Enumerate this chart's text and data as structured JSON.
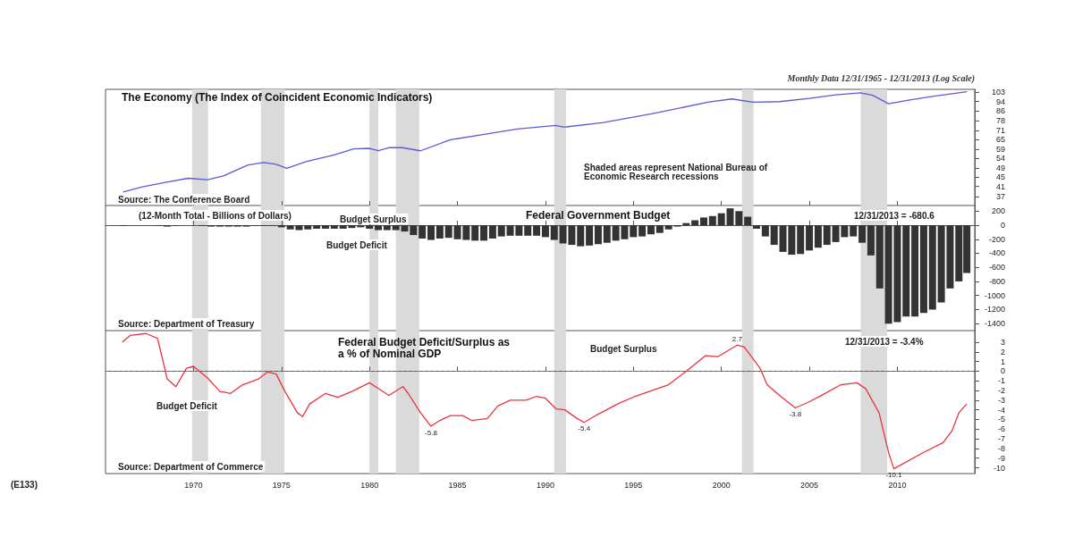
{
  "chart_data": [
    {
      "type": "line",
      "title": "The Economy (The Index of Coincident Economic Indicators)",
      "subtitle": "Monthly Data 12/31/1965 - 12/31/2013 (Log Scale)",
      "annotations": [
        "Shaded areas represent National Bureau of Economic Research recessions",
        "Source: The Conference Board"
      ],
      "log": true,
      "tick_labels": "y",
      "xlim": [
        1965,
        2014.4
      ],
      "xticks": [
        1970,
        1975,
        1980,
        1985,
        1990,
        1995,
        2000,
        2005,
        2010
      ],
      "ylim": [
        34,
        106
      ],
      "yticks": [
        37,
        41,
        45,
        49,
        54,
        59,
        65,
        71,
        78,
        86,
        94,
        103
      ],
      "bands": [
        {
          "axis": "x",
          "from": 1969.92,
          "to": 1970.83,
          "color": "#dadada"
        },
        {
          "axis": "x",
          "from": 1973.83,
          "to": 1975.17,
          "color": "#dadada"
        },
        {
          "axis": "x",
          "from": 1980.0,
          "to": 1980.5,
          "color": "#dadada"
        },
        {
          "axis": "x",
          "from": 1981.5,
          "to": 1982.83,
          "color": "#dadada"
        },
        {
          "axis": "x",
          "from": 1990.5,
          "to": 1991.17,
          "color": "#dadada"
        },
        {
          "axis": "x",
          "from": 2001.17,
          "to": 2001.83,
          "color": "#dadada"
        },
        {
          "axis": "x",
          "from": 2007.92,
          "to": 2009.42,
          "color": "#dadada"
        }
      ],
      "series": [
        {
          "color": "#5a5ad8",
          "x": [
            1966.0,
            1967.1,
            1968.4,
            1969.7,
            1970.8,
            1971.7,
            1973.1,
            1974.0,
            1974.7,
            1975.3,
            1976.4,
            1978.0,
            1979.1,
            1980.0,
            1980.5,
            1981.1,
            1981.85,
            1982.9,
            1984.6,
            1986.6,
            1988.4,
            1990.6,
            1991.0,
            1991.2,
            1993.3,
            1996.1,
            1999.3,
            2000.6,
            2001.8,
            2003.3,
            2005.0,
            2006.5,
            2007.9,
            2008.6,
            2009.5,
            2010.5,
            2012.0,
            2013.95
          ],
          "values": [
            38.8,
            40.8,
            42.6,
            44.4,
            43.8,
            45.4,
            50.6,
            51.8,
            50.9,
            48.9,
            52.3,
            55.8,
            59.2,
            59.5,
            58.1,
            59.9,
            59.9,
            58.1,
            64.7,
            68.4,
            71.9,
            74.4,
            73.3,
            73.4,
            76.6,
            83.6,
            93.7,
            96.5,
            93.5,
            94,
            97,
            100.5,
            102.5,
            100,
            92,
            95,
            99,
            103.5
          ]
        }
      ]
    },
    {
      "type": "bar",
      "title": "Federal Government Budget",
      "annotations": [
        "(12-Month Total - Billions of Dollars)",
        "Budget Surplus",
        "Budget Deficit",
        "12/31/2013 = -680.6",
        "Source: Department of Treasury"
      ],
      "tick_labels": "y",
      "xlim": [
        1965,
        2014.4
      ],
      "xticks": [
        1970,
        1975,
        1980,
        1985,
        1990,
        1995,
        2000,
        2005,
        2010
      ],
      "ylim": [
        -1500,
        280
      ],
      "yticks": [
        200,
        0,
        -200,
        -400,
        -600,
        -800,
        -1000,
        -1200,
        -1400
      ],
      "bands": [
        {
          "axis": "x",
          "from": 1969.92,
          "to": 1970.83,
          "color": "#dadada"
        },
        {
          "axis": "x",
          "from": 1973.83,
          "to": 1975.17,
          "color": "#dadada"
        },
        {
          "axis": "x",
          "from": 1980.0,
          "to": 1980.5,
          "color": "#dadada"
        },
        {
          "axis": "x",
          "from": 1981.5,
          "to": 1982.83,
          "color": "#dadada"
        },
        {
          "axis": "x",
          "from": 1990.5,
          "to": 1991.17,
          "color": "#dadada"
        },
        {
          "axis": "x",
          "from": 2001.17,
          "to": 2001.83,
          "color": "#dadada"
        },
        {
          "axis": "x",
          "from": 2007.92,
          "to": 2009.42,
          "color": "#dadada"
        }
      ],
      "series": [
        {
          "color": "#333333",
          "x": [
            1966,
            1966.5,
            1967,
            1967.5,
            1968,
            1968.5,
            1969,
            1969.5,
            1970,
            1970.5,
            1971,
            1971.5,
            1972,
            1972.5,
            1973,
            1973.5,
            1974,
            1974.5,
            1975,
            1975.5,
            1976,
            1976.5,
            1977,
            1977.5,
            1978,
            1978.5,
            1979,
            1979.5,
            1980,
            1980.5,
            1981,
            1981.5,
            1982,
            1982.5,
            1983,
            1983.5,
            1984,
            1984.5,
            1985,
            1985.5,
            1986,
            1986.5,
            1987,
            1987.5,
            1988,
            1988.5,
            1989,
            1989.5,
            1990,
            1990.5,
            1991,
            1991.5,
            1992,
            1992.5,
            1993,
            1993.5,
            1994,
            1994.5,
            1995,
            1995.5,
            1996,
            1996.5,
            1997,
            1997.5,
            1998,
            1998.5,
            1999,
            1999.5,
            2000,
            2000.5,
            2001,
            2001.5,
            2002,
            2002.5,
            2003,
            2003.5,
            2004,
            2004.5,
            2005,
            2005.5,
            2006,
            2006.5,
            2007,
            2007.5,
            2008,
            2008.5,
            2009,
            2009.5,
            2010,
            2010.5,
            2011,
            2011.5,
            2012,
            2012.5,
            2013,
            2013.5,
            2013.95
          ],
          "values": [
            -10,
            0,
            0,
            0,
            -10,
            -20,
            -10,
            0,
            0,
            -10,
            -20,
            -20,
            -20,
            -20,
            -20,
            -10,
            -10,
            -10,
            -30,
            -60,
            -70,
            -60,
            -50,
            -50,
            -50,
            -50,
            -40,
            -30,
            -50,
            -70,
            -70,
            -70,
            -90,
            -140,
            -190,
            -210,
            -190,
            -180,
            -200,
            -210,
            -220,
            -220,
            -190,
            -160,
            -150,
            -150,
            -150,
            -150,
            -170,
            -210,
            -260,
            -280,
            -300,
            -290,
            -270,
            -250,
            -220,
            -200,
            -170,
            -160,
            -130,
            -110,
            -60,
            -20,
            30,
            70,
            110,
            130,
            170,
            240,
            200,
            120,
            -50,
            -160,
            -280,
            -380,
            -420,
            -410,
            -360,
            -320,
            -280,
            -240,
            -170,
            -160,
            -250,
            -430,
            -900,
            -1400,
            -1380,
            -1300,
            -1300,
            -1250,
            -1200,
            -1100,
            -900,
            -800,
            -680.6
          ]
        }
      ]
    },
    {
      "type": "line",
      "title": "Federal Budget Deficit/Surplus as a % of Nominal GDP",
      "annotations": [
        "Budget Surplus",
        "Budget Deficit",
        "12/31/2013 = -3.4%",
        "Source: Department of Commerce",
        "(E133)",
        {
          "text": "-5.8",
          "x": 1983.5,
          "y": -5.7
        },
        {
          "text": "-5.4",
          "x": 1992.2,
          "y": -5.3
        },
        {
          "text": "2.7",
          "x": 2000.9,
          "y": 2.7
        },
        {
          "text": "-3.8",
          "x": 2004.2,
          "y": -3.8
        },
        {
          "text": "-10.1",
          "x": 2009.8,
          "y": -10.1
        }
      ],
      "xlim": [
        1965,
        2014.4
      ],
      "xticks": [
        1970,
        1975,
        1980,
        1985,
        1990,
        1995,
        2000,
        2005,
        2010
      ],
      "ylim": [
        -10.6,
        4.2
      ],
      "yticks": [
        3,
        2,
        1,
        0,
        -1,
        -2,
        -3,
        -4,
        -5,
        -6,
        -7,
        -8,
        -9,
        -10
      ],
      "ref_lines": [
        {
          "axis": "y",
          "value": 0,
          "line_style": "dashed",
          "color": "#777777"
        }
      ],
      "bands": [
        {
          "axis": "x",
          "from": 1969.92,
          "to": 1970.83,
          "color": "#dadada"
        },
        {
          "axis": "x",
          "from": 1973.83,
          "to": 1975.17,
          "color": "#dadada"
        },
        {
          "axis": "x",
          "from": 1980.0,
          "to": 1980.5,
          "color": "#dadada"
        },
        {
          "axis": "x",
          "from": 1981.5,
          "to": 1982.83,
          "color": "#dadada"
        },
        {
          "axis": "x",
          "from": 1990.5,
          "to": 1991.17,
          "color": "#dadada"
        },
        {
          "axis": "x",
          "from": 2001.17,
          "to": 2001.83,
          "color": "#dadada"
        },
        {
          "axis": "x",
          "from": 2007.92,
          "to": 2009.42,
          "color": "#dadada"
        }
      ],
      "series": [
        {
          "color": "#e8343c",
          "x": [
            1965.95,
            1966.4,
            1967.3,
            1967.95,
            1968.3,
            1968.5,
            1969.0,
            1969.6,
            1970.0,
            1970.8,
            1971.5,
            1972.1,
            1972.8,
            1973.7,
            1974.2,
            1974.7,
            1975.2,
            1975.9,
            1976.2,
            1976.6,
            1977.5,
            1978.2,
            1979.0,
            1980.0,
            1980.6,
            1981.1,
            1981.9,
            1982.2,
            1982.9,
            1983.5,
            1984.0,
            1984.6,
            1985.3,
            1985.8,
            1986.7,
            1987.3,
            1988.0,
            1988.9,
            1989.5,
            1990.0,
            1990.6,
            1991.1,
            1991.8,
            1992.2,
            1992.95,
            1994.1,
            1995.1,
            1997.0,
            1998.0,
            1999.1,
            1999.8,
            2000.9,
            2001.3,
            2002.2,
            2002.6,
            2003.3,
            2004.2,
            2004.96,
            2005.7,
            2006.8,
            2007.7,
            2008.2,
            2008.96,
            2009.5,
            2009.8,
            2010.8,
            2011.5,
            2012.6,
            2013.1,
            2013.5,
            2013.95
          ],
          "values": [
            3.0,
            3.7,
            3.9,
            3.4,
            0.8,
            -0.8,
            -1.6,
            0.3,
            0.5,
            -0.7,
            -2.1,
            -2.3,
            -1.4,
            -0.8,
            -0.1,
            -0.3,
            -2.1,
            -4.3,
            -4.7,
            -3.4,
            -2.3,
            -2.7,
            -2.1,
            -1.2,
            -1.9,
            -2.5,
            -1.6,
            -2.3,
            -4.3,
            -5.7,
            -5.1,
            -4.6,
            -4.6,
            -5.1,
            -4.9,
            -3.6,
            -3.0,
            -3.0,
            -2.6,
            -2.8,
            -3.9,
            -4.0,
            -4.9,
            -5.3,
            -4.5,
            -3.4,
            -2.6,
            -1.4,
            0.0,
            1.6,
            1.5,
            2.7,
            2.5,
            0.3,
            -1.4,
            -2.5,
            -3.8,
            -3.2,
            -2.5,
            -1.4,
            -1.2,
            -1.8,
            -4.3,
            -8.4,
            -10.1,
            -9.1,
            -8.4,
            -7.4,
            -6.2,
            -4.3,
            -3.4
          ]
        }
      ]
    }
  ]
}
